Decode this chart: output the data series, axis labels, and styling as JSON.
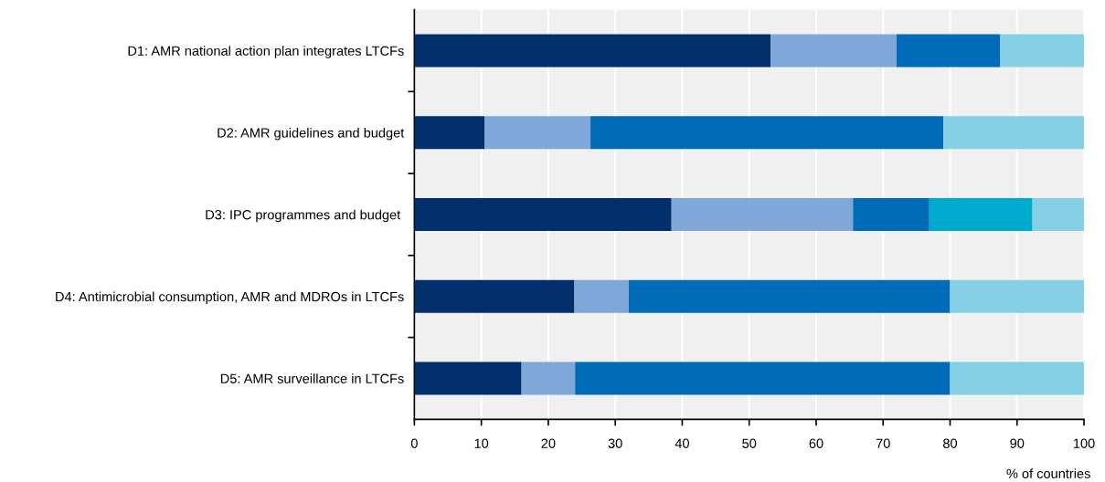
{
  "chart_data": {
    "type": "bar",
    "orientation": "horizontal",
    "stacked": true,
    "xlabel": "% of countries",
    "categories": [
      "D1: AMR national action plan integrates LTCFs",
      "D2: AMR guidelines and budget",
      "D3: IPC programmes and budget ",
      "D4: Antimicrobial consumption, AMR and MDROs in LTCFs",
      "D5: AMR surveillance in LTCFs"
    ],
    "series": [
      {
        "color": "#002f6c",
        "values": [
          53.2,
          10.5,
          38.4,
          23.9,
          16.0
        ]
      },
      {
        "color": "#7fa8d9",
        "values": [
          18.8,
          15.8,
          27.1,
          8.1,
          8.0
        ]
      },
      {
        "color": "#006bb6",
        "values": [
          15.5,
          52.7,
          11.4,
          48.0,
          56.0
        ]
      },
      {
        "color": "#00aacc",
        "values": [
          null,
          null,
          15.4,
          null,
          null
        ]
      },
      {
        "color": "#85d0e4",
        "values": [
          12.5,
          21.0,
          7.7,
          20.0,
          20.0
        ]
      }
    ],
    "xlim": [
      0,
      100
    ],
    "xticks": [
      0,
      10,
      20,
      30,
      40,
      50,
      60,
      70,
      80,
      90,
      100
    ],
    "grid": "x",
    "legend": false
  }
}
